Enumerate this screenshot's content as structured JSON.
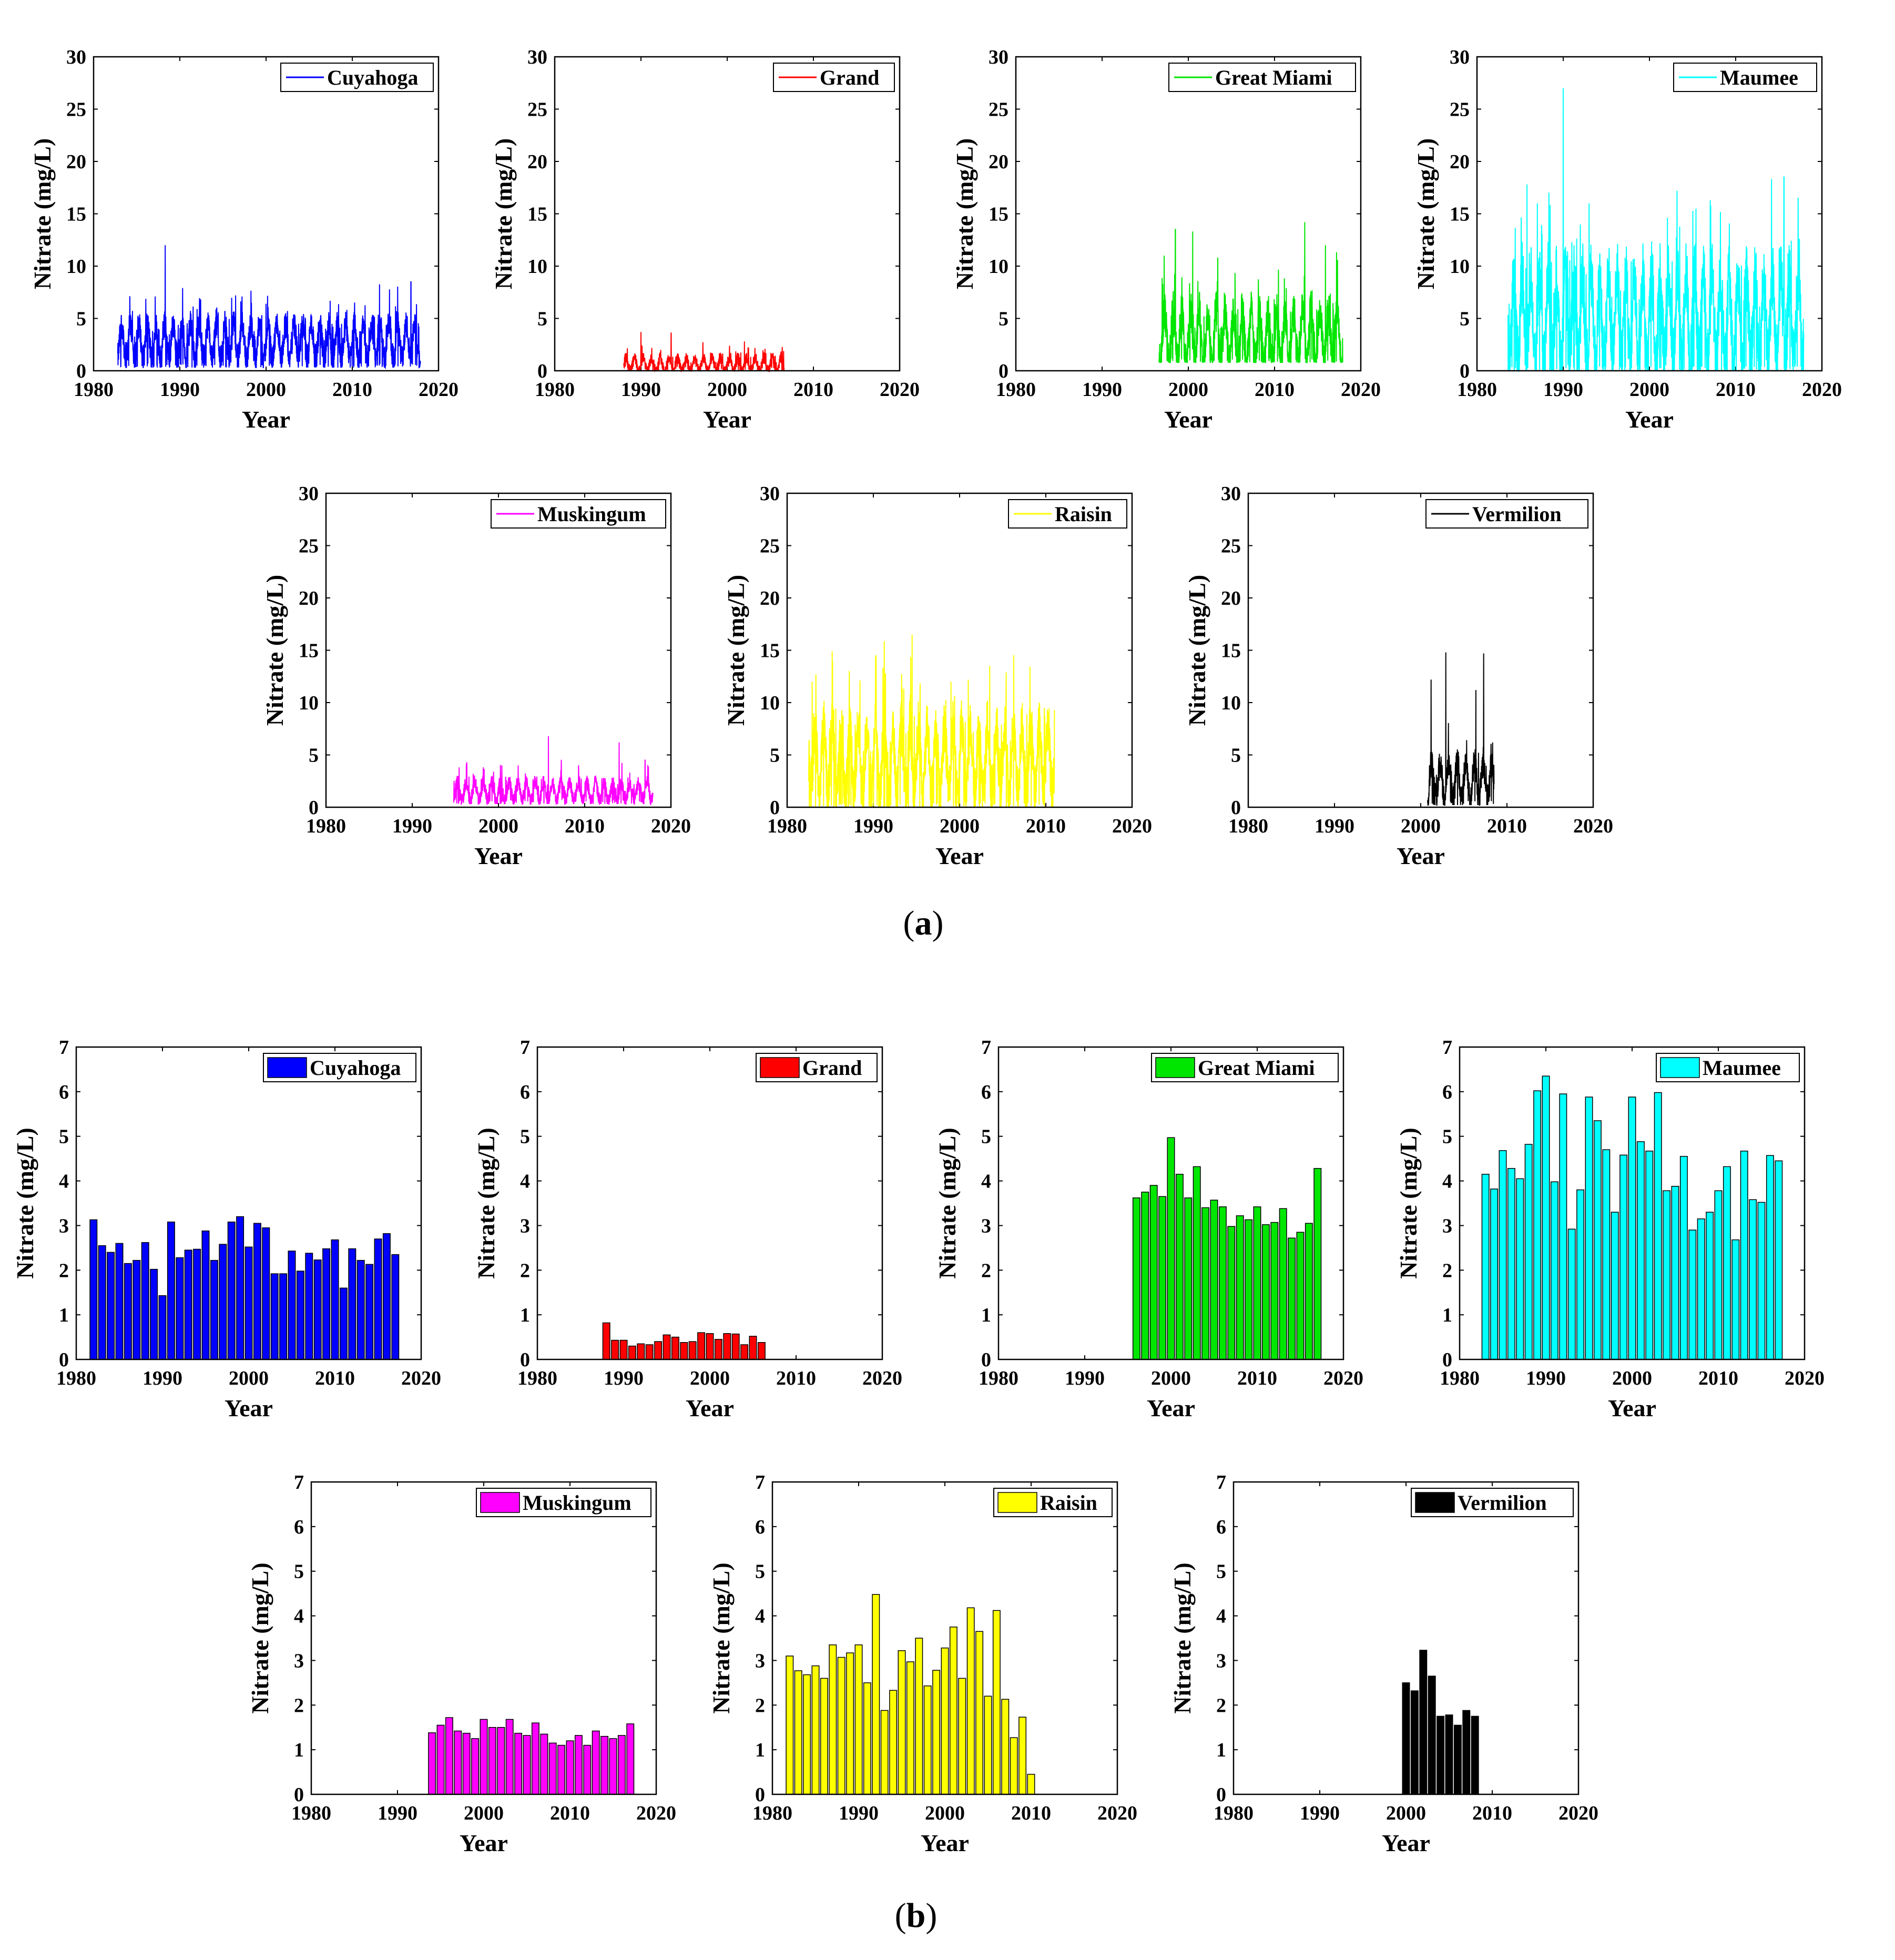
{
  "figure": {
    "panel_labels": {
      "a": {
        "open": "(",
        "letter": "a",
        "close": ")"
      },
      "b": {
        "open": "(",
        "letter": "b",
        "close": ")"
      }
    }
  },
  "colors": {
    "Cuyahoga": "#0000ff",
    "Grand": "#ff0000",
    "Great Miami": "#00e600",
    "Maumee": "#00ffff",
    "Muskingum": "#ff00ff",
    "Raisin": "#ffff00",
    "Vermilion": "#000000"
  },
  "chart_data": [
    {
      "panel": "a",
      "type": "line",
      "series_name": "Cuyahoga",
      "xlabel": "Year",
      "ylabel": "Nitrate (mg/L)",
      "xlim": [
        1980,
        2020
      ],
      "ylim": [
        0,
        30
      ],
      "xticks": [
        1980,
        1990,
        2000,
        2010,
        2020
      ],
      "yticks": [
        0,
        5,
        10,
        15,
        20,
        25,
        30
      ],
      "legend": "top-right",
      "x_range": [
        1982.8,
        2017.9
      ],
      "baseline": 2.8,
      "amplitude": 3.6,
      "floor": 0.3,
      "peaks": [
        [
          1988.3,
          12.0
        ],
        [
          2016.8,
          8.5
        ],
        [
          1992,
          5.9
        ],
        [
          2000,
          6.4
        ]
      ]
    },
    {
      "panel": "a",
      "type": "line",
      "series_name": "Grand",
      "xlabel": "Year",
      "ylabel": "Nitrate (mg/L)",
      "xlim": [
        1980,
        2020
      ],
      "ylim": [
        0,
        30
      ],
      "xticks": [
        1980,
        1990,
        2000,
        2010,
        2020
      ],
      "yticks": [
        0,
        5,
        10,
        15,
        20,
        25,
        30
      ],
      "legend": "top-right",
      "x_range": [
        1988.0,
        2006.6
      ],
      "baseline": 0.6,
      "amplitude": 1.4,
      "floor": 0.0,
      "peaks": [
        [
          1990.0,
          3.7
        ],
        [
          1993.5,
          3.6
        ],
        [
          2002.0,
          2.8
        ]
      ]
    },
    {
      "panel": "a",
      "type": "line",
      "series_name": "Great Miami",
      "xlabel": "Year",
      "ylabel": "Nitrate (mg/L)",
      "xlim": [
        1980,
        2020
      ],
      "ylim": [
        0,
        30
      ],
      "xticks": [
        1980,
        1990,
        2000,
        2010,
        2020
      ],
      "yticks": [
        0,
        5,
        10,
        15,
        20,
        25,
        30
      ],
      "legend": "top-right",
      "x_range": [
        1996.6,
        2017.9
      ],
      "baseline": 3.2,
      "amplitude": 5.5,
      "floor": 0.8,
      "peaks": [
        [
          1997.2,
          11.0
        ],
        [
          1998.5,
          13.5
        ],
        [
          2000.5,
          13.3
        ],
        [
          2013.5,
          14.2
        ],
        [
          2015.9,
          12.0
        ],
        [
          2017.3,
          10.6
        ]
      ]
    },
    {
      "panel": "a",
      "type": "line",
      "series_name": "Maumee",
      "xlabel": "Year",
      "ylabel": "Nitrate (mg/L)",
      "xlim": [
        1980,
        2020
      ],
      "ylim": [
        0,
        30
      ],
      "xticks": [
        1980,
        1990,
        2000,
        2010,
        2020
      ],
      "yticks": [
        0,
        5,
        10,
        15,
        20,
        25,
        30
      ],
      "legend": "top-right",
      "x_range": [
        1983.6,
        2017.9
      ],
      "baseline": 5.0,
      "amplitude": 9.0,
      "floor": 0.0,
      "peaks": [
        [
          1990.0,
          27.0
        ],
        [
          2015.6,
          18.5
        ],
        [
          1985.8,
          17.8
        ],
        [
          2003.2,
          17.2
        ],
        [
          1993,
          16.0
        ],
        [
          1987,
          16.0
        ]
      ]
    },
    {
      "panel": "a",
      "type": "line",
      "series_name": "Muskingum",
      "xlabel": "Year",
      "ylabel": "Nitrate (mg/L)",
      "xlim": [
        1980,
        2020
      ],
      "ylim": [
        0,
        30
      ],
      "xticks": [
        1980,
        1990,
        2000,
        2010,
        2020
      ],
      "yticks": [
        0,
        5,
        10,
        15,
        20,
        25,
        30
      ],
      "legend": "top-right",
      "x_range": [
        1994.8,
        2017.9
      ],
      "baseline": 1.5,
      "amplitude": 1.9,
      "floor": 0.3,
      "peaks": [
        [
          2005.8,
          6.8
        ],
        [
          2014.0,
          6.2
        ],
        [
          2017.0,
          4.5
        ]
      ]
    },
    {
      "panel": "a",
      "type": "line",
      "series_name": "Raisin",
      "xlabel": "Year",
      "ylabel": "Nitrate (mg/L)",
      "xlim": [
        1980,
        2020
      ],
      "ylim": [
        0,
        30
      ],
      "xticks": [
        1980,
        1990,
        2000,
        2010,
        2020
      ],
      "yticks": [
        0,
        5,
        10,
        15,
        20,
        25,
        30
      ],
      "legend": "top-right",
      "x_range": [
        1982.5,
        2011.0
      ],
      "baseline": 4.5,
      "amplitude": 7.0,
      "floor": 0.0,
      "peaks": [
        [
          1994.5,
          16.5
        ],
        [
          2003.5,
          13.5
        ],
        [
          1982.9,
          12.0
        ],
        [
          1999,
          12.0
        ],
        [
          2001,
          12.2
        ]
      ]
    },
    {
      "panel": "a",
      "type": "line",
      "series_name": "Vermilion",
      "xlabel": "Year",
      "ylabel": "Nitrate (mg/L)",
      "xlim": [
        1980,
        2020
      ],
      "ylim": [
        0,
        30
      ],
      "xticks": [
        1980,
        1990,
        2000,
        2010,
        2020
      ],
      "yticks": [
        0,
        5,
        10,
        15,
        20,
        25,
        30
      ],
      "legend": "top-right",
      "x_range": [
        2000.8,
        2008.5
      ],
      "baseline": 2.5,
      "amplitude": 4.0,
      "floor": 0.2,
      "peaks": [
        [
          2001.2,
          12.2
        ],
        [
          2002.9,
          14.8
        ],
        [
          2007.3,
          14.7
        ],
        [
          2006.4,
          11.2
        ]
      ]
    },
    {
      "panel": "b",
      "type": "bar",
      "series_name": "Cuyahoga",
      "xlabel": "Year",
      "ylabel": "Nitrate (mg/L)",
      "xlim": [
        1980,
        2020
      ],
      "ylim": [
        0,
        7
      ],
      "xticks": [
        1980,
        1990,
        2000,
        2010,
        2020
      ],
      "yticks": [
        0,
        1,
        2,
        3,
        4,
        5,
        6,
        7
      ],
      "legend": "top-right",
      "x": [
        1982,
        1983,
        1984,
        1985,
        1986,
        1987,
        1988,
        1989,
        1990,
        1991,
        1992,
        1993,
        1994,
        1995,
        1996,
        1997,
        1998,
        1999,
        2000,
        2001,
        2002,
        2003,
        2004,
        2005,
        2006,
        2007,
        2008,
        2009,
        2010,
        2011,
        2012,
        2013,
        2014,
        2015,
        2016,
        2017
      ],
      "values": [
        3.13,
        2.55,
        2.4,
        2.6,
        2.15,
        2.22,
        2.62,
        2.02,
        1.43,
        3.08,
        2.28,
        2.45,
        2.47,
        2.88,
        2.22,
        2.58,
        3.08,
        3.2,
        2.52,
        3.05,
        2.95,
        1.92,
        1.92,
        2.43,
        1.98,
        2.38,
        2.23,
        2.48,
        2.68,
        1.6,
        2.48,
        2.22,
        2.13,
        2.7,
        2.82,
        2.35
      ]
    },
    {
      "panel": "b",
      "type": "bar",
      "series_name": "Grand",
      "xlabel": "Year",
      "ylabel": "Nitrate (mg/L)",
      "xlim": [
        1980,
        2020
      ],
      "ylim": [
        0,
        7
      ],
      "xticks": [
        1980,
        1990,
        2000,
        2010,
        2020
      ],
      "yticks": [
        0,
        1,
        2,
        3,
        4,
        5,
        6,
        7
      ],
      "legend": "top-right",
      "x": [
        1988,
        1989,
        1990,
        1991,
        1992,
        1993,
        1994,
        1995,
        1996,
        1997,
        1998,
        1999,
        2000,
        2001,
        2002,
        2003,
        2004,
        2005,
        2006
      ],
      "values": [
        0.82,
        0.43,
        0.43,
        0.3,
        0.35,
        0.33,
        0.4,
        0.55,
        0.5,
        0.38,
        0.4,
        0.6,
        0.58,
        0.45,
        0.58,
        0.57,
        0.33,
        0.52,
        0.38
      ]
    },
    {
      "panel": "b",
      "type": "bar",
      "series_name": "Great Miami",
      "xlabel": "Year",
      "ylabel": "Nitrate (mg/L)",
      "xlim": [
        1980,
        2020
      ],
      "ylim": [
        0,
        7
      ],
      "xticks": [
        1980,
        1990,
        2000,
        2010,
        2020
      ],
      "yticks": [
        0,
        1,
        2,
        3,
        4,
        5,
        6,
        7
      ],
      "legend": "top-right",
      "x": [
        1996,
        1997,
        1998,
        1999,
        2000,
        2001,
        2002,
        2003,
        2004,
        2005,
        2006,
        2007,
        2008,
        2009,
        2010,
        2011,
        2012,
        2013,
        2014,
        2015,
        2016,
        2017
      ],
      "values": [
        3.62,
        3.75,
        3.9,
        3.65,
        4.97,
        4.15,
        3.62,
        4.32,
        3.4,
        3.57,
        3.42,
        2.98,
        3.22,
        3.13,
        3.42,
        3.02,
        3.07,
        3.38,
        2.72,
        2.85,
        3.05,
        4.28
      ]
    },
    {
      "panel": "b",
      "type": "bar",
      "series_name": "Maumee",
      "xlabel": "Year",
      "ylabel": "Nitrate (mg/L)",
      "xlim": [
        1980,
        2020
      ],
      "ylim": [
        0,
        7
      ],
      "xticks": [
        1980,
        1990,
        2000,
        2010,
        2020
      ],
      "yticks": [
        0,
        1,
        2,
        3,
        4,
        5,
        6,
        7
      ],
      "legend": "top-right",
      "x": [
        1983,
        1984,
        1985,
        1986,
        1987,
        1988,
        1989,
        1990,
        1991,
        1992,
        1993,
        1994,
        1995,
        1996,
        1997,
        1998,
        1999,
        2000,
        2001,
        2002,
        2003,
        2004,
        2005,
        2006,
        2007,
        2008,
        2009,
        2010,
        2011,
        2012,
        2013,
        2014,
        2015,
        2016,
        2017
      ],
      "values": [
        4.15,
        3.82,
        4.68,
        4.28,
        4.05,
        4.82,
        6.02,
        6.35,
        3.98,
        5.95,
        2.92,
        3.8,
        5.88,
        5.35,
        4.7,
        3.3,
        4.58,
        5.88,
        4.88,
        4.67,
        5.98,
        3.78,
        3.88,
        4.55,
        2.9,
        3.15,
        3.3,
        3.78,
        4.32,
        2.68,
        4.67,
        3.58,
        3.52,
        4.57,
        4.45
      ]
    },
    {
      "panel": "b",
      "type": "bar",
      "series_name": "Muskingum",
      "xlabel": "Year",
      "ylabel": "Nitrate (mg/L)",
      "xlim": [
        1980,
        2020
      ],
      "ylim": [
        0,
        7
      ],
      "xticks": [
        1980,
        1990,
        2000,
        2010,
        2020
      ],
      "yticks": [
        0,
        1,
        2,
        3,
        4,
        5,
        6,
        7
      ],
      "legend": "top-right",
      "x": [
        1994,
        1995,
        1996,
        1997,
        1998,
        1999,
        2000,
        2001,
        2002,
        2003,
        2004,
        2005,
        2006,
        2007,
        2008,
        2009,
        2010,
        2011,
        2012,
        2013,
        2014,
        2015,
        2016,
        2017
      ],
      "values": [
        1.38,
        1.55,
        1.72,
        1.42,
        1.37,
        1.25,
        1.68,
        1.5,
        1.5,
        1.68,
        1.37,
        1.32,
        1.6,
        1.35,
        1.15,
        1.1,
        1.2,
        1.32,
        1.1,
        1.42,
        1.3,
        1.25,
        1.32,
        1.58
      ]
    },
    {
      "panel": "b",
      "type": "bar",
      "series_name": "Raisin",
      "xlabel": "Year",
      "ylabel": "Nitrate (mg/L)",
      "xlim": [
        1980,
        2020
      ],
      "ylim": [
        0,
        7
      ],
      "xticks": [
        1980,
        1990,
        2000,
        2010,
        2020
      ],
      "yticks": [
        0,
        1,
        2,
        3,
        4,
        5,
        6,
        7
      ],
      "legend": "top-right",
      "x": [
        1982,
        1983,
        1984,
        1985,
        1986,
        1987,
        1988,
        1989,
        1990,
        1991,
        1992,
        1993,
        1994,
        1995,
        1996,
        1997,
        1998,
        1999,
        2000,
        2001,
        2002,
        2003,
        2004,
        2005,
        2006,
        2007,
        2008,
        2009,
        2010
      ],
      "values": [
        3.1,
        2.77,
        2.68,
        2.88,
        2.6,
        3.35,
        3.07,
        3.17,
        3.35,
        2.5,
        4.48,
        1.88,
        2.33,
        3.22,
        2.97,
        3.5,
        2.43,
        2.78,
        3.28,
        3.75,
        2.6,
        4.18,
        3.65,
        2.2,
        4.12,
        2.13,
        1.27,
        1.73,
        0.45
      ]
    },
    {
      "panel": "b",
      "type": "bar",
      "series_name": "Vermilion",
      "xlabel": "Year",
      "ylabel": "Nitrate (mg/L)",
      "xlim": [
        1980,
        2020
      ],
      "ylim": [
        0,
        7
      ],
      "xticks": [
        1980,
        1990,
        2000,
        2010,
        2020
      ],
      "yticks": [
        0,
        1,
        2,
        3,
        4,
        5,
        6,
        7
      ],
      "legend": "top-right",
      "x": [
        2000,
        2001,
        2002,
        2003,
        2004,
        2005,
        2006,
        2007,
        2008
      ],
      "values": [
        2.5,
        2.32,
        3.23,
        2.65,
        1.75,
        1.78,
        1.55,
        1.88,
        1.75
      ]
    }
  ]
}
